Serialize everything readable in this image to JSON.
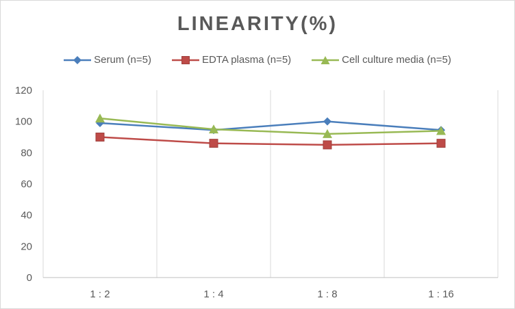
{
  "chart_data": {
    "type": "line",
    "title": "LINEARITY(%)",
    "categories": [
      "1:2",
      "1:4",
      "1:8",
      "1:16"
    ],
    "series": [
      {
        "name": "Serum (n=5)",
        "values": [
          99,
          94.5,
          100,
          94.5
        ],
        "color": "#4a7ebb",
        "marker": "diamond"
      },
      {
        "name": "EDTA plasma (n=5)",
        "values": [
          90,
          86,
          85,
          86
        ],
        "color": "#be4b48",
        "marker": "square"
      },
      {
        "name": "Cell culture media (n=5)",
        "values": [
          102,
          95,
          92,
          94
        ],
        "color": "#98b954",
        "marker": "triangle"
      }
    ],
    "ylim": [
      0,
      120
    ],
    "yticks": [
      0,
      20,
      40,
      60,
      80,
      100,
      120
    ],
    "xlabel": "",
    "ylabel": "",
    "grid": "vertical",
    "legend_position": "top"
  }
}
